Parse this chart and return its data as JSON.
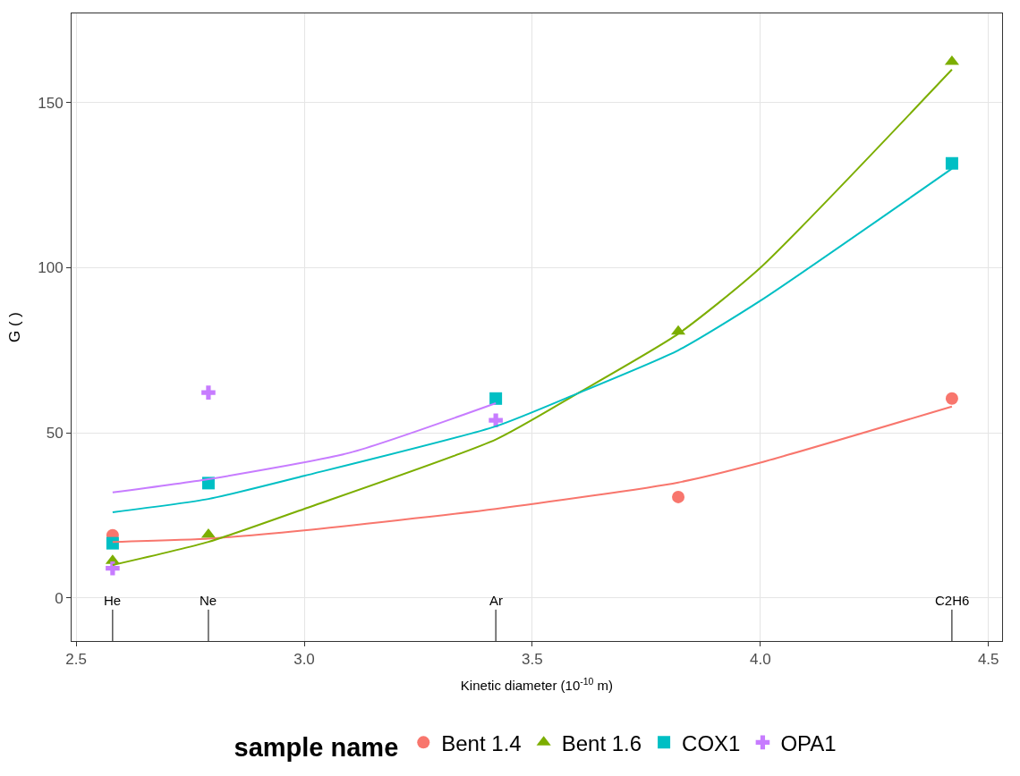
{
  "chart_data": {
    "type": "scatter",
    "xlabel": "Kinetic diameter (10$^{-10}$ m)",
    "ylabel": "G ( )",
    "legend_title": "sample name",
    "xlim": [
      2.49,
      4.53
    ],
    "ylim": [
      -13,
      177
    ],
    "xticks": [
      2.5,
      {
        "value": 3,
        "label": "3.0"
      },
      3.5,
      {
        "value": 4,
        "label": "4.0"
      },
      4.5
    ],
    "yticks": [
      0,
      50,
      100,
      150
    ],
    "grid": true,
    "legend": "bottom",
    "series": [
      {
        "name": "Bent 1.4",
        "color": "#f8766d",
        "marker": "circle",
        "x": [
          2.58,
          3.82,
          4.42
        ],
        "values": [
          19,
          30.6,
          60.4
        ]
      },
      {
        "name": "Bent 1.6",
        "color": "#7cae00",
        "marker": "triangle",
        "x": [
          2.58,
          2.79,
          3.82,
          4.42
        ],
        "values": [
          11.3,
          19.2,
          80.7,
          162.4
        ]
      },
      {
        "name": "COX1",
        "color": "#00bfc4",
        "marker": "square",
        "x": [
          2.58,
          2.79,
          3.42,
          4.42
        ],
        "values": [
          16.6,
          34.8,
          60.4,
          131.6
        ]
      },
      {
        "name": "OPA1",
        "color": "#c77cff",
        "marker": "cross",
        "x": [
          2.58,
          2.79,
          3.42
        ],
        "values": [
          9,
          62.2,
          53.8
        ]
      },
      {
        "type": "line",
        "color": "#f8766d",
        "marker": "none",
        "x": [
          2.58,
          2.79,
          3.0,
          3.42,
          3.82,
          4.0,
          4.42
        ],
        "values": [
          17,
          18,
          20.5,
          27,
          35,
          41,
          58
        ]
      },
      {
        "type": "line",
        "color": "#7cae00",
        "marker": "none",
        "x": [
          2.58,
          2.79,
          3.0,
          3.42,
          3.6,
          3.82,
          4.0,
          4.42
        ],
        "values": [
          10,
          17,
          27,
          48,
          62,
          80,
          100,
          160
        ]
      },
      {
        "type": "line",
        "color": "#00bfc4",
        "marker": "none",
        "x": [
          2.58,
          2.79,
          3.0,
          3.42,
          3.6,
          3.82,
          4.0,
          4.42
        ],
        "values": [
          26,
          30,
          37,
          52,
          62,
          75,
          90,
          130
        ]
      },
      {
        "type": "line",
        "color": "#c77cff",
        "marker": "none",
        "x": [
          2.58,
          2.79,
          3.1,
          3.42
        ],
        "values": [
          32,
          36,
          44,
          59
        ]
      }
    ],
    "ref_lines": [
      {
        "axis": "x",
        "value": 2.58,
        "label": "He",
        "color": "#000000"
      },
      {
        "axis": "x",
        "value": 2.79,
        "label": "Ne",
        "color": "#000000"
      },
      {
        "axis": "x",
        "value": 3.42,
        "label": "Ar",
        "color": "#000000"
      },
      {
        "axis": "x",
        "value": 4.42,
        "label": "C2H6",
        "color": "#000000"
      }
    ]
  }
}
